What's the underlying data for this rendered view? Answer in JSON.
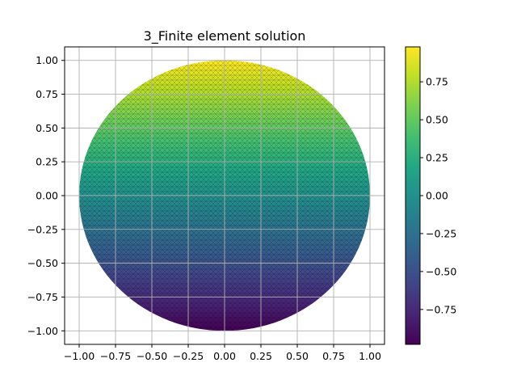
{
  "chart_data": {
    "type": "heatmap",
    "title": "3_Finite element solution",
    "xlabel": "",
    "ylabel": "",
    "xlim": [
      -1.1,
      1.1
    ],
    "ylim": [
      -1.1,
      1.1
    ],
    "grid": true,
    "domain_shape": "unit disk",
    "field_description": "u(x,y) approximately equals y",
    "colormap": "viridis",
    "colorbar": {
      "range": [
        -0.98,
        0.98
      ],
      "ticks": [
        -0.75,
        -0.5,
        -0.25,
        0.0,
        0.25,
        0.5,
        0.75
      ],
      "tick_labels": [
        "−0.75",
        "−0.50",
        "−0.25",
        "0.00",
        "0.25",
        "0.50",
        "0.75"
      ]
    },
    "x_ticks": [
      -1.0,
      -0.75,
      -0.5,
      -0.25,
      0.0,
      0.25,
      0.5,
      0.75,
      1.0
    ],
    "x_tick_labels": [
      "−1.00",
      "−0.75",
      "−0.50",
      "−0.25",
      "0.00",
      "0.25",
      "0.50",
      "0.75",
      "1.00"
    ],
    "y_ticks": [
      1.0,
      0.75,
      0.5,
      0.25,
      0.0,
      -0.25,
      -0.5,
      -0.75,
      -1.0
    ],
    "y_tick_labels": [
      "1.00",
      "0.75",
      "0.50",
      "0.25",
      "0.00",
      "−0.25",
      "−0.50",
      "−0.75",
      "−1.00"
    ]
  }
}
